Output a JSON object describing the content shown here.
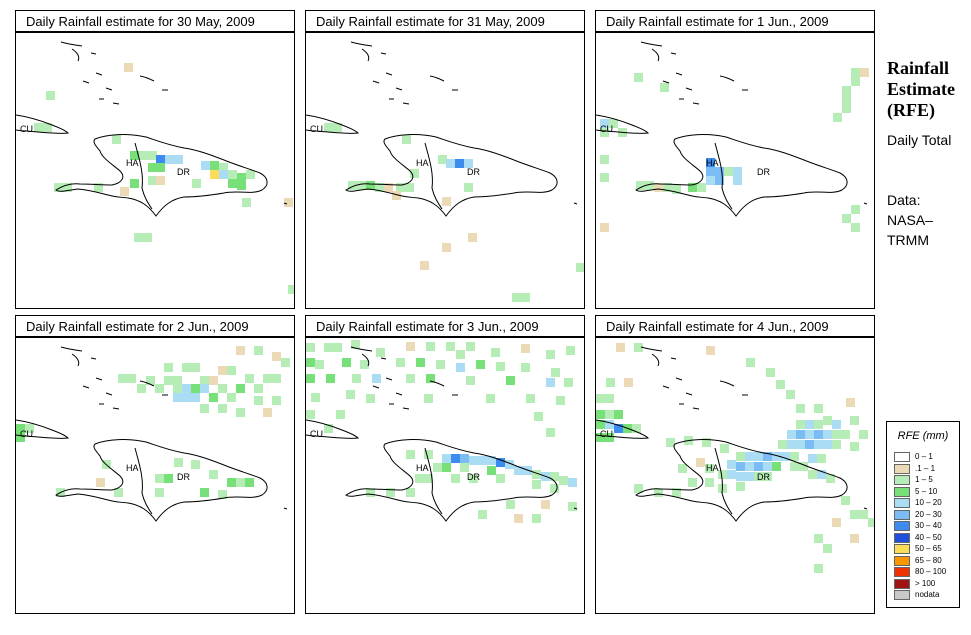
{
  "panels": [
    {
      "title": "Daily Rainfall estimate for  30 May, 2009"
    },
    {
      "title": "Daily Rainfall estimate for  31 May, 2009"
    },
    {
      "title": "Daily Rainfall estimate for  1 Jun., 2009"
    },
    {
      "title": "Daily Rainfall estimate for  2 Jun., 2009"
    },
    {
      "title": "Daily Rainfall estimate for  3 Jun., 2009"
    },
    {
      "title": "Daily Rainfall estimate for  4 Jun., 2009"
    }
  ],
  "map_labels": {
    "cuba": "CU",
    "haiti": "HA",
    "dominican_republic": "DR"
  },
  "side_panel": {
    "title": "Rainfall Estimate (RFE)",
    "period": "Daily Total",
    "source_label": "Data:",
    "source": "NASA–TRMM"
  },
  "legend": {
    "title": "RFE (mm)",
    "entries": [
      {
        "label": "0 – 1",
        "color": "#ffffff"
      },
      {
        "label": ".1 – 1",
        "color": "#ecd9b6"
      },
      {
        "label": "1 – 5",
        "color": "#b6ecb6"
      },
      {
        "label": "5 – 10",
        "color": "#78e078"
      },
      {
        "label": "10 – 20",
        "color": "#aadcf4"
      },
      {
        "label": "20 – 30",
        "color": "#7cbcf4"
      },
      {
        "label": "30 – 40",
        "color": "#3c8cf0"
      },
      {
        "label": "40 – 50",
        "color": "#1e50dc"
      },
      {
        "label": "50 – 65",
        "color": "#fade5a"
      },
      {
        "label": "65 – 80",
        "color": "#fa9600"
      },
      {
        "label": "80 – 100",
        "color": "#f03200"
      },
      {
        "label": "> 100",
        "color": "#a01414"
      },
      {
        "label": "nodata",
        "color": "#c8c8c8"
      }
    ]
  }
}
